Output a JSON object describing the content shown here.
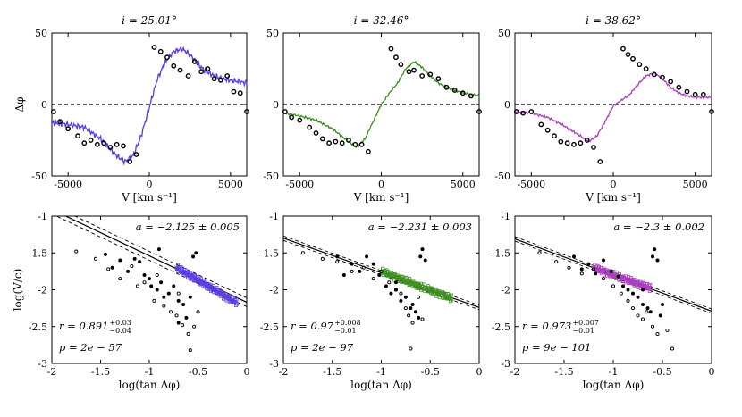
{
  "chart_data": [
    {
      "type": "line",
      "panel": "top-1",
      "title": "i = 25.01°",
      "xlabel": "V [km s⁻¹]",
      "ylabel": "Δφ",
      "xlim": [
        -6000,
        6000
      ],
      "ylim": [
        -50,
        50
      ],
      "xticks": [
        -5000,
        0,
        5000
      ],
      "yticks": [
        -50,
        0,
        50
      ],
      "color": "#5b3ce0",
      "model": {
        "x": [
          -6000,
          -5000,
          -4000,
          -3000,
          -2000,
          -1500,
          -1000,
          -500,
          0,
          500,
          1000,
          1500,
          2000,
          2500,
          3000,
          3500,
          4000,
          4500,
          5000,
          5500,
          6000
        ],
        "y": [
          -13,
          -14,
          -16,
          -24,
          -36,
          -40,
          -36,
          -22,
          -2,
          18,
          30,
          37,
          39,
          35,
          28,
          23,
          20,
          18,
          17,
          16,
          15
        ]
      },
      "points": {
        "x": [
          -5900,
          -5500,
          -5000,
          -4400,
          -4000,
          -3600,
          -3200,
          -2800,
          -2400,
          -2000,
          -1600,
          -1200,
          -800,
          300,
          700,
          1100,
          1500,
          1900,
          2400,
          2800,
          3200,
          3600,
          4000,
          4400,
          4800,
          5200,
          5600,
          6000
        ],
        "y": [
          -5,
          -12,
          -17,
          -22,
          -27,
          -25,
          -28,
          -27,
          -30,
          -28,
          -29,
          -40,
          -35,
          40,
          37,
          33,
          27,
          24,
          20,
          30,
          23,
          25,
          18,
          17,
          20,
          9,
          8,
          -5
        ]
      }
    },
    {
      "type": "line",
      "panel": "top-2",
      "title": "i = 32.46°",
      "xlabel": "V [km s⁻¹]",
      "ylabel": "",
      "xlim": [
        -6000,
        6000
      ],
      "ylim": [
        -50,
        50
      ],
      "xticks": [
        -5000,
        0,
        5000
      ],
      "yticks": [
        -50,
        0,
        50
      ],
      "color": "#3f8f20",
      "model": {
        "x": [
          -6000,
          -5000,
          -4000,
          -3000,
          -2000,
          -1500,
          -1000,
          -500,
          0,
          500,
          1000,
          1500,
          2000,
          2500,
          3000,
          3500,
          4000,
          4500,
          5000,
          5500,
          6000
        ],
        "y": [
          -6,
          -8,
          -11,
          -17,
          -26,
          -30,
          -24,
          -12,
          0,
          8,
          15,
          25,
          30,
          26,
          20,
          15,
          12,
          10,
          8,
          7,
          6
        ]
      },
      "points": {
        "x": [
          -5900,
          -5500,
          -5000,
          -4400,
          -4000,
          -3600,
          -3200,
          -2800,
          -2400,
          -2000,
          -1600,
          -1200,
          -800,
          600,
          900,
          1200,
          1700,
          2000,
          2500,
          3000,
          3500,
          4000,
          4500,
          5000,
          5500,
          6000
        ],
        "y": [
          -5,
          -9,
          -11,
          -16,
          -20,
          -24,
          -27,
          -26,
          -27,
          -25,
          -28,
          -28,
          -33,
          39,
          33,
          28,
          23,
          24,
          20,
          21,
          18,
          12,
          10,
          8,
          6,
          -5
        ]
      }
    },
    {
      "type": "line",
      "panel": "top-3",
      "title": "i = 38.62°",
      "xlabel": "V [km s⁻¹]",
      "ylabel": "",
      "xlim": [
        -6000,
        6000
      ],
      "ylim": [
        -50,
        50
      ],
      "xticks": [
        -5000,
        0,
        5000
      ],
      "yticks": [
        -50,
        0,
        50
      ],
      "color": "#a93fbf",
      "model": {
        "x": [
          -6000,
          -5000,
          -4000,
          -3000,
          -2000,
          -1500,
          -1000,
          -500,
          0,
          500,
          1000,
          1500,
          2000,
          2500,
          3000,
          3500,
          4000,
          4500,
          5000,
          5500,
          6000
        ],
        "y": [
          -5,
          -6,
          -9,
          -15,
          -22,
          -26,
          -22,
          -12,
          -1,
          3,
          7,
          14,
          20,
          22,
          18,
          12,
          8,
          6,
          5,
          5,
          5
        ]
      },
      "points": {
        "x": [
          -5900,
          -5500,
          -5000,
          -4400,
          -4000,
          -3600,
          -3200,
          -2800,
          -2400,
          -2000,
          -1600,
          -1200,
          -800,
          600,
          900,
          1200,
          1600,
          2000,
          2500,
          3000,
          3500,
          4000,
          4500,
          5000,
          5500,
          6000
        ],
        "y": [
          -5,
          -6,
          -5,
          -14,
          -18,
          -22,
          -26,
          -27,
          -28,
          -27,
          -25,
          -30,
          -40,
          39,
          35,
          32,
          28,
          25,
          21,
          19,
          16,
          12,
          9,
          7,
          7,
          -5
        ]
      }
    },
    {
      "type": "scatter",
      "panel": "bottom-1",
      "xlabel": "log(tan Δφ)",
      "ylabel": "log(V/c)",
      "xlim": [
        -2,
        0
      ],
      "ylim": [
        -3,
        -1
      ],
      "xticks": [
        -2,
        -1.5,
        -1,
        -0.5,
        0
      ],
      "yticks": [
        -3,
        -2.5,
        -2,
        -1.5,
        -1
      ],
      "color": "#5b3ce0",
      "fit": {
        "slope": -0.63,
        "intercept": -2.17,
        "band": 0.06
      },
      "annotation_a": "a = −2.125 ± 0.005",
      "r_value": "r = 0.891",
      "r_plus": "+0.03",
      "r_minus": "−0.04",
      "p_value": "p = 2e − 57",
      "filled_points": {
        "x": [
          -1.45,
          -1.38,
          -1.3,
          -1.22,
          -1.15,
          -1.1,
          -1.05,
          -0.98,
          -0.92,
          -0.88,
          -0.85,
          -0.8,
          -0.75,
          -0.7,
          -0.65,
          -0.62,
          -0.58,
          -0.55,
          -0.52,
          -0.9,
          -1.0,
          -0.7
        ],
        "y": [
          -1.52,
          -1.7,
          -1.6,
          -1.75,
          -1.58,
          -1.62,
          -1.8,
          -1.95,
          -2.0,
          -1.9,
          -2.1,
          -2.05,
          -1.95,
          -2.15,
          -2.2,
          -2.38,
          -2.1,
          -1.55,
          -1.5,
          -1.45,
          -1.85,
          -2.45
        ]
      },
      "open_points": {
        "x": [
          -1.75,
          -1.55,
          -1.42,
          -1.3,
          -1.18,
          -1.05,
          -0.95,
          -0.85,
          -0.78,
          -0.7,
          -0.66,
          -0.6,
          -0.58,
          -0.54,
          -0.5,
          -1.12,
          -0.92,
          -0.72
        ],
        "y": [
          -1.48,
          -1.58,
          -1.72,
          -1.85,
          -1.68,
          -1.9,
          -2.15,
          -2.22,
          -2.3,
          -2.05,
          -2.48,
          -2.6,
          -2.82,
          -2.5,
          -2.3,
          -1.95,
          -1.8,
          -2.35
        ]
      },
      "cluster": {
        "x_min": -0.72,
        "x_max": -0.1,
        "y_at_min": -1.7,
        "y_at_max": -2.18
      }
    },
    {
      "type": "scatter",
      "panel": "bottom-2",
      "xlabel": "log(tan Δφ)",
      "ylabel": "",
      "xlim": [
        -2,
        0
      ],
      "ylim": [
        -3,
        -1
      ],
      "xticks": [
        -2,
        -1.5,
        -1,
        -0.5,
        0
      ],
      "yticks": [
        -3,
        -2.5,
        -2,
        -1.5,
        -1
      ],
      "color": "#3f8f20",
      "fit": {
        "slope": -0.47,
        "intercept": -2.24,
        "band": 0.03
      },
      "annotation_a": "a = −2.231 ± 0.003",
      "r_value": "r = 0.97",
      "r_plus": "+0.008",
      "r_minus": "−0.01",
      "p_value": "p = 2e − 97",
      "filled_points": {
        "x": [
          -1.45,
          -1.38,
          -1.3,
          -1.22,
          -1.15,
          -1.08,
          -1.02,
          -0.95,
          -0.9,
          -0.85,
          -0.8,
          -0.75,
          -0.7,
          -0.65,
          -0.62,
          -0.6,
          -0.58,
          -0.55,
          -0.68,
          -0.85
        ],
        "y": [
          -1.55,
          -1.8,
          -1.65,
          -1.75,
          -1.55,
          -1.65,
          -1.8,
          -1.95,
          -2.05,
          -2.0,
          -2.15,
          -2.1,
          -2.25,
          -2.3,
          -2.38,
          -1.55,
          -1.45,
          -1.6,
          -2.2,
          -1.9
        ]
      },
      "open_points": {
        "x": [
          -1.8,
          -1.6,
          -1.45,
          -1.3,
          -1.18,
          -1.08,
          -1.0,
          -0.92,
          -0.85,
          -0.8,
          -0.75,
          -0.72,
          -0.68,
          -0.62,
          -0.58,
          -0.7
        ],
        "y": [
          -1.5,
          -1.58,
          -1.62,
          -1.75,
          -1.7,
          -1.85,
          -1.75,
          -1.9,
          -2.0,
          -2.05,
          -2.25,
          -2.35,
          -2.45,
          -2.1,
          -2.4,
          -2.8
        ]
      },
      "cluster": {
        "x_min": -1.0,
        "x_max": -0.28,
        "y_at_min": -1.75,
        "y_at_max": -2.12
      }
    },
    {
      "type": "scatter",
      "panel": "bottom-3",
      "xlabel": "log(tan Δφ)",
      "ylabel": "",
      "xlim": [
        -2,
        0
      ],
      "ylim": [
        -3,
        -1
      ],
      "xticks": [
        -2,
        -1.5,
        -1,
        -0.5,
        0
      ],
      "yticks": [
        -3,
        -2.5,
        -2,
        -1.5,
        -1
      ],
      "color": "#a93fbf",
      "fit": {
        "slope": -0.49,
        "intercept": -2.29,
        "band": 0.03
      },
      "annotation_a": "a = −2.3 ± 0.002",
      "r_value": "r = 0.973",
      "r_plus": "+0.007",
      "r_minus": "−0.01",
      "p_value": "p = 9e − 101",
      "filled_points": {
        "x": [
          -1.4,
          -1.32,
          -1.25,
          -1.18,
          -1.1,
          -1.02,
          -0.95,
          -0.9,
          -0.85,
          -0.8,
          -0.75,
          -0.7,
          -0.65,
          -0.62,
          -0.6,
          -0.58,
          -0.55,
          -0.5,
          -0.52,
          -0.7
        ],
        "y": [
          -1.55,
          -1.72,
          -1.65,
          -1.78,
          -1.6,
          -1.75,
          -1.82,
          -1.95,
          -2.0,
          -2.05,
          -2.1,
          -2.2,
          -2.25,
          -2.3,
          -1.55,
          -1.45,
          -1.6,
          -2.2,
          -2.35,
          -2.0
        ]
      },
      "open_points": {
        "x": [
          -1.75,
          -1.58,
          -1.45,
          -1.32,
          -1.2,
          -1.1,
          -1.0,
          -0.92,
          -0.85,
          -0.8,
          -0.75,
          -0.7,
          -0.66,
          -0.6,
          -0.55,
          -0.45,
          -0.4
        ],
        "y": [
          -1.5,
          -1.62,
          -1.7,
          -1.78,
          -1.72,
          -1.85,
          -1.95,
          -2.05,
          -2.15,
          -2.25,
          -2.35,
          -2.4,
          -2.3,
          -2.5,
          -2.6,
          -2.55,
          -2.8
        ]
      },
      "cluster": {
        "x_min": -1.2,
        "x_max": -0.62,
        "y_at_min": -1.7,
        "y_at_max": -1.98
      }
    }
  ]
}
